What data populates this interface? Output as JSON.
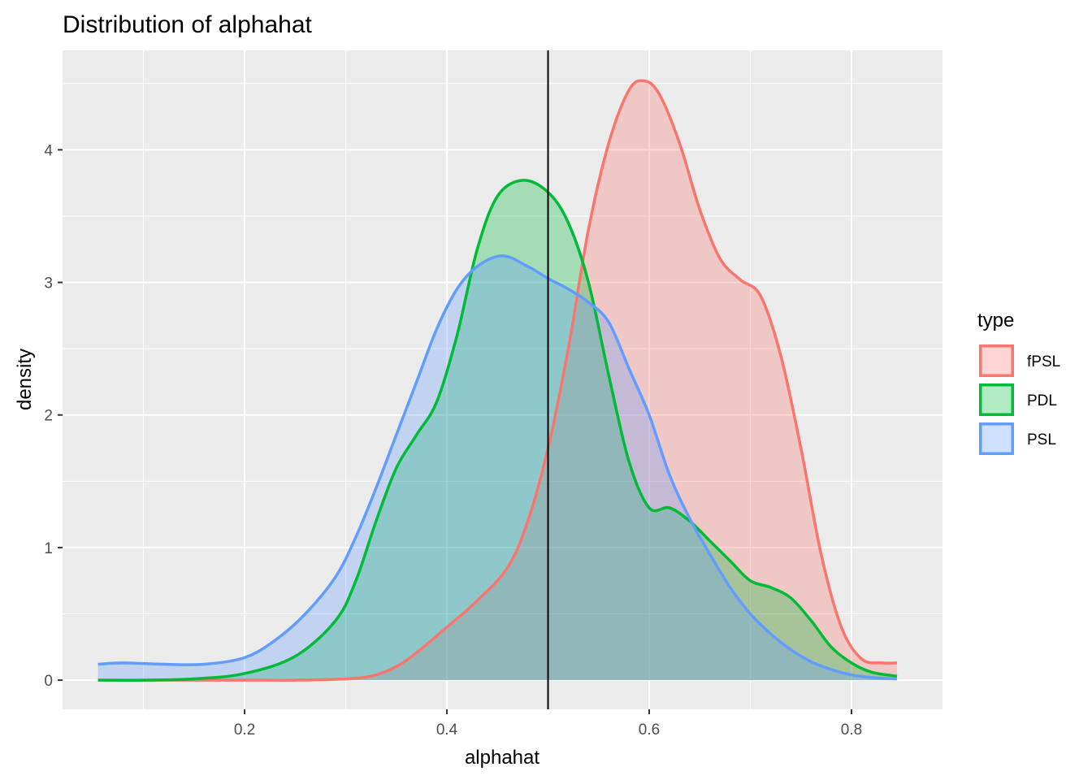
{
  "chart_data": {
    "type": "area",
    "title": "Distribution of alphahat",
    "xlabel": "alphahat",
    "ylabel": "density",
    "xlim": [
      0.02,
      0.89
    ],
    "ylim": [
      -0.22,
      4.75
    ],
    "x_ticks": [
      0.2,
      0.4,
      0.6,
      0.8
    ],
    "x_tick_labels": [
      "0.2",
      "0.4",
      "0.6",
      "0.8"
    ],
    "y_ticks": [
      0,
      1,
      2,
      3,
      4
    ],
    "y_tick_labels": [
      "0",
      "1",
      "2",
      "3",
      "4"
    ],
    "grid": true,
    "reference_line": {
      "x": 0.5,
      "color": "#000000"
    },
    "legend": {
      "title": "type",
      "placement": "right",
      "entries": [
        "fPSL",
        "PDL",
        "PSL"
      ]
    },
    "series": [
      {
        "name": "fPSL",
        "color": "#F8766D",
        "points": [
          [
            0.055,
            0.0
          ],
          [
            0.1,
            0.0
          ],
          [
            0.2,
            0.0
          ],
          [
            0.25,
            0.0
          ],
          [
            0.3,
            0.01
          ],
          [
            0.33,
            0.04
          ],
          [
            0.36,
            0.15
          ],
          [
            0.4,
            0.4
          ],
          [
            0.43,
            0.6
          ],
          [
            0.46,
            0.85
          ],
          [
            0.48,
            1.2
          ],
          [
            0.5,
            1.75
          ],
          [
            0.52,
            2.5
          ],
          [
            0.54,
            3.4
          ],
          [
            0.56,
            4.05
          ],
          [
            0.58,
            4.45
          ],
          [
            0.595,
            4.52
          ],
          [
            0.61,
            4.42
          ],
          [
            0.63,
            4.05
          ],
          [
            0.65,
            3.55
          ],
          [
            0.67,
            3.18
          ],
          [
            0.69,
            3.02
          ],
          [
            0.71,
            2.9
          ],
          [
            0.73,
            2.45
          ],
          [
            0.75,
            1.75
          ],
          [
            0.77,
            0.95
          ],
          [
            0.79,
            0.4
          ],
          [
            0.81,
            0.16
          ],
          [
            0.83,
            0.13
          ],
          [
            0.845,
            0.13
          ]
        ]
      },
      {
        "name": "PDL",
        "color": "#00BA38",
        "points": [
          [
            0.055,
            0.0
          ],
          [
            0.1,
            0.0
          ],
          [
            0.15,
            0.01
          ],
          [
            0.2,
            0.05
          ],
          [
            0.25,
            0.18
          ],
          [
            0.29,
            0.45
          ],
          [
            0.31,
            0.75
          ],
          [
            0.33,
            1.2
          ],
          [
            0.35,
            1.6
          ],
          [
            0.37,
            1.85
          ],
          [
            0.39,
            2.1
          ],
          [
            0.41,
            2.6
          ],
          [
            0.43,
            3.25
          ],
          [
            0.45,
            3.65
          ],
          [
            0.475,
            3.77
          ],
          [
            0.5,
            3.68
          ],
          [
            0.52,
            3.45
          ],
          [
            0.54,
            3.0
          ],
          [
            0.56,
            2.3
          ],
          [
            0.58,
            1.65
          ],
          [
            0.6,
            1.3
          ],
          [
            0.62,
            1.3
          ],
          [
            0.64,
            1.2
          ],
          [
            0.66,
            1.05
          ],
          [
            0.68,
            0.9
          ],
          [
            0.7,
            0.75
          ],
          [
            0.72,
            0.7
          ],
          [
            0.74,
            0.62
          ],
          [
            0.76,
            0.45
          ],
          [
            0.78,
            0.25
          ],
          [
            0.8,
            0.13
          ],
          [
            0.82,
            0.06
          ],
          [
            0.845,
            0.03
          ]
        ]
      },
      {
        "name": "PSL",
        "color": "#619CFF",
        "points": [
          [
            0.055,
            0.12
          ],
          [
            0.08,
            0.13
          ],
          [
            0.12,
            0.12
          ],
          [
            0.16,
            0.12
          ],
          [
            0.2,
            0.17
          ],
          [
            0.23,
            0.3
          ],
          [
            0.26,
            0.5
          ],
          [
            0.29,
            0.78
          ],
          [
            0.31,
            1.08
          ],
          [
            0.33,
            1.45
          ],
          [
            0.35,
            1.85
          ],
          [
            0.37,
            2.25
          ],
          [
            0.39,
            2.65
          ],
          [
            0.41,
            2.95
          ],
          [
            0.43,
            3.12
          ],
          [
            0.455,
            3.2
          ],
          [
            0.48,
            3.12
          ],
          [
            0.5,
            3.03
          ],
          [
            0.52,
            2.95
          ],
          [
            0.54,
            2.85
          ],
          [
            0.56,
            2.7
          ],
          [
            0.58,
            2.35
          ],
          [
            0.6,
            2.0
          ],
          [
            0.62,
            1.55
          ],
          [
            0.64,
            1.22
          ],
          [
            0.66,
            0.95
          ],
          [
            0.68,
            0.7
          ],
          [
            0.7,
            0.5
          ],
          [
            0.72,
            0.35
          ],
          [
            0.74,
            0.23
          ],
          [
            0.76,
            0.14
          ],
          [
            0.78,
            0.08
          ],
          [
            0.8,
            0.04
          ],
          [
            0.82,
            0.02
          ],
          [
            0.845,
            0.01
          ]
        ]
      }
    ]
  }
}
